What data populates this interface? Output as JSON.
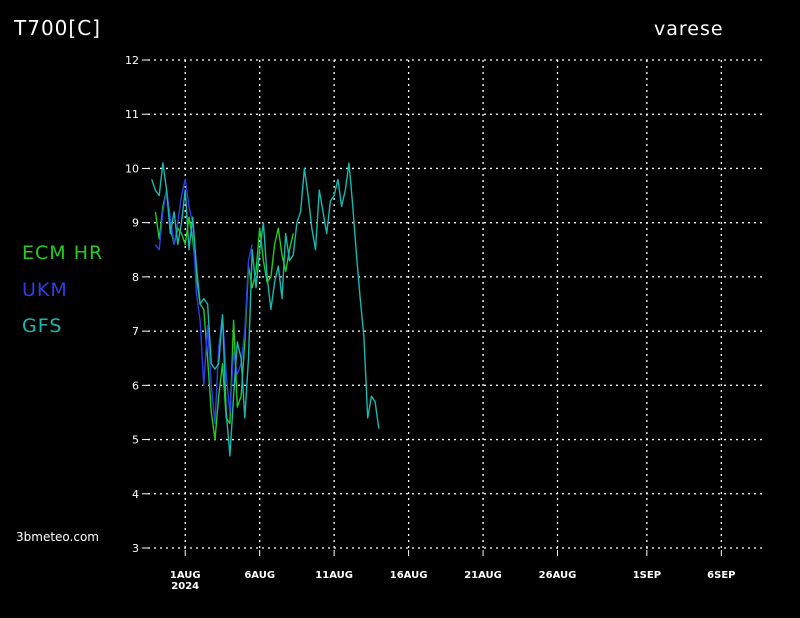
{
  "header": {
    "title": "T700[C]",
    "location": "varese"
  },
  "footer": {
    "watermark": "3bmeteo.com"
  },
  "colors": {
    "ECM HR": "#22cc22",
    "UKM": "#2d3ee6",
    "GFS": "#17b8b0"
  },
  "chart_data": {
    "type": "line",
    "title": "T700[C]",
    "subtitle": "varese",
    "ylabel": "",
    "xlabel": "",
    "ylim": [
      3,
      12
    ],
    "yticks": [
      3,
      4,
      5,
      6,
      7,
      8,
      9,
      10,
      11,
      12
    ],
    "xlim": [
      "2024-07-29T12:00",
      "2024-09-09T00:00"
    ],
    "xticks": [
      {
        "date": "2024-08-01",
        "label": "1AUG",
        "sublabel": "2024"
      },
      {
        "date": "2024-08-06",
        "label": "6AUG"
      },
      {
        "date": "2024-08-11",
        "label": "11AUG"
      },
      {
        "date": "2024-08-16",
        "label": "16AUG"
      },
      {
        "date": "2024-08-21",
        "label": "21AUG"
      },
      {
        "date": "2024-08-26",
        "label": "26AUG"
      },
      {
        "date": "2024-09-01",
        "label": "1SEP"
      },
      {
        "date": "2024-09-06",
        "label": "6SEP"
      }
    ],
    "grid": true,
    "legend": "left",
    "series": [
      {
        "name": "ECM HR",
        "points": [
          [
            "2024-07-30T00:00",
            9.2
          ],
          [
            "2024-07-30T06:00",
            8.7
          ],
          [
            "2024-07-30T12:00",
            9.3
          ],
          [
            "2024-07-30T18:00",
            9.6
          ],
          [
            "2024-07-31T00:00",
            8.9
          ],
          [
            "2024-07-31T06:00",
            8.6
          ],
          [
            "2024-07-31T12:00",
            8.9
          ],
          [
            "2024-07-31T18:00",
            8.8
          ],
          [
            "2024-08-01T00:00",
            8.6
          ],
          [
            "2024-08-01T06:00",
            9.1
          ],
          [
            "2024-08-01T12:00",
            8.7
          ],
          [
            "2024-08-01T18:00",
            8.0
          ],
          [
            "2024-08-02T00:00",
            7.5
          ],
          [
            "2024-08-02T06:00",
            7.4
          ],
          [
            "2024-08-02T12:00",
            6.5
          ],
          [
            "2024-08-02T18:00",
            5.5
          ],
          [
            "2024-08-03T00:00",
            5.0
          ],
          [
            "2024-08-03T06:00",
            5.8
          ],
          [
            "2024-08-03T12:00",
            6.4
          ],
          [
            "2024-08-03T18:00",
            5.4
          ],
          [
            "2024-08-04T00:00",
            5.3
          ],
          [
            "2024-08-04T06:00",
            7.2
          ],
          [
            "2024-08-04T12:00",
            5.6
          ],
          [
            "2024-08-04T18:00",
            5.8
          ],
          [
            "2024-08-05T00:00",
            6.8
          ],
          [
            "2024-08-05T06:00",
            8.2
          ],
          [
            "2024-08-05T12:00",
            7.8
          ],
          [
            "2024-08-05T18:00",
            8.1
          ],
          [
            "2024-08-06T00:00",
            8.9
          ],
          [
            "2024-08-06T06:00",
            8.3
          ],
          [
            "2024-08-06T12:00",
            7.9
          ],
          [
            "2024-08-06T18:00",
            8.0
          ],
          [
            "2024-08-07T00:00",
            8.6
          ],
          [
            "2024-08-07T06:00",
            8.9
          ],
          [
            "2024-08-07T12:00",
            8.4
          ],
          [
            "2024-08-07T18:00",
            8.1
          ],
          [
            "2024-08-08T00:00",
            8.5
          ],
          [
            "2024-08-08T06:00",
            8.8
          ]
        ]
      },
      {
        "name": "UKM",
        "points": [
          [
            "2024-07-30T00:00",
            8.6
          ],
          [
            "2024-07-30T06:00",
            8.5
          ],
          [
            "2024-07-30T12:00",
            9.2
          ],
          [
            "2024-07-30T18:00",
            9.6
          ],
          [
            "2024-07-31T00:00",
            9.1
          ],
          [
            "2024-07-31T06:00",
            8.6
          ],
          [
            "2024-07-31T12:00",
            9.0
          ],
          [
            "2024-07-31T18:00",
            9.5
          ],
          [
            "2024-08-01T00:00",
            9.8
          ],
          [
            "2024-08-01T06:00",
            9.3
          ],
          [
            "2024-08-01T12:00",
            9.0
          ],
          [
            "2024-08-01T18:00",
            7.7
          ],
          [
            "2024-08-02T00:00",
            7.2
          ],
          [
            "2024-08-02T06:00",
            6.0
          ],
          [
            "2024-08-02T12:00",
            7.1
          ],
          [
            "2024-08-02T18:00",
            6.0
          ],
          [
            "2024-08-03T00:00",
            5.3
          ],
          [
            "2024-08-03T06:00",
            6.7
          ],
          [
            "2024-08-03T12:00",
            7.3
          ],
          [
            "2024-08-03T18:00",
            6.2
          ],
          [
            "2024-08-04T00:00",
            5.5
          ],
          [
            "2024-08-04T06:00",
            6.6
          ],
          [
            "2024-08-04T12:00",
            6.2
          ],
          [
            "2024-08-04T18:00",
            6.4
          ],
          [
            "2024-08-05T00:00",
            7.0
          ],
          [
            "2024-08-05T06:00",
            8.3
          ],
          [
            "2024-08-05T12:00",
            8.6
          ]
        ]
      },
      {
        "name": "GFS",
        "points": [
          [
            "2024-07-29T18:00",
            9.8
          ],
          [
            "2024-07-30T00:00",
            9.6
          ],
          [
            "2024-07-30T06:00",
            9.5
          ],
          [
            "2024-07-30T12:00",
            10.1
          ],
          [
            "2024-07-30T18:00",
            9.6
          ],
          [
            "2024-07-31T00:00",
            8.8
          ],
          [
            "2024-07-31T06:00",
            9.2
          ],
          [
            "2024-07-31T12:00",
            8.6
          ],
          [
            "2024-07-31T18:00",
            9.0
          ],
          [
            "2024-08-01T00:00",
            9.6
          ],
          [
            "2024-08-01T06:00",
            8.5
          ],
          [
            "2024-08-01T12:00",
            9.1
          ],
          [
            "2024-08-01T18:00",
            8.2
          ],
          [
            "2024-08-02T00:00",
            7.5
          ],
          [
            "2024-08-02T06:00",
            7.6
          ],
          [
            "2024-08-02T12:00",
            7.5
          ],
          [
            "2024-08-02T18:00",
            6.4
          ],
          [
            "2024-08-03T00:00",
            6.3
          ],
          [
            "2024-08-03T06:00",
            6.4
          ],
          [
            "2024-08-03T12:00",
            7.3
          ],
          [
            "2024-08-03T18:00",
            5.5
          ],
          [
            "2024-08-04T00:00",
            4.7
          ],
          [
            "2024-08-04T06:00",
            5.8
          ],
          [
            "2024-08-04T12:00",
            6.8
          ],
          [
            "2024-08-04T18:00",
            6.5
          ],
          [
            "2024-08-05T00:00",
            5.4
          ],
          [
            "2024-08-05T06:00",
            6.5
          ],
          [
            "2024-08-05T12:00",
            8.5
          ],
          [
            "2024-08-05T18:00",
            7.8
          ],
          [
            "2024-08-06T00:00",
            8.5
          ],
          [
            "2024-08-06T06:00",
            9.0
          ],
          [
            "2024-08-06T12:00",
            8.0
          ],
          [
            "2024-08-06T18:00",
            7.4
          ],
          [
            "2024-08-07T00:00",
            7.9
          ],
          [
            "2024-08-07T06:00",
            8.2
          ],
          [
            "2024-08-07T12:00",
            7.6
          ],
          [
            "2024-08-07T18:00",
            8.8
          ],
          [
            "2024-08-08T00:00",
            8.3
          ],
          [
            "2024-08-08T06:00",
            8.4
          ],
          [
            "2024-08-08T12:00",
            9.0
          ],
          [
            "2024-08-08T18:00",
            9.2
          ],
          [
            "2024-08-09T00:00",
            10.0
          ],
          [
            "2024-08-09T06:00",
            9.5
          ],
          [
            "2024-08-09T12:00",
            8.9
          ],
          [
            "2024-08-09T18:00",
            8.5
          ],
          [
            "2024-08-10T00:00",
            9.6
          ],
          [
            "2024-08-10T06:00",
            9.2
          ],
          [
            "2024-08-10T12:00",
            8.8
          ],
          [
            "2024-08-10T18:00",
            9.4
          ],
          [
            "2024-08-11T00:00",
            9.5
          ],
          [
            "2024-08-11T06:00",
            9.8
          ],
          [
            "2024-08-11T12:00",
            9.3
          ],
          [
            "2024-08-11T18:00",
            9.6
          ],
          [
            "2024-08-12T00:00",
            10.1
          ],
          [
            "2024-08-12T06:00",
            9.3
          ],
          [
            "2024-08-12T12:00",
            8.4
          ],
          [
            "2024-08-12T18:00",
            7.6
          ],
          [
            "2024-08-13T00:00",
            6.9
          ],
          [
            "2024-08-13T06:00",
            5.4
          ],
          [
            "2024-08-13T12:00",
            5.8
          ],
          [
            "2024-08-13T18:00",
            5.7
          ],
          [
            "2024-08-14T00:00",
            5.2
          ]
        ]
      }
    ]
  }
}
